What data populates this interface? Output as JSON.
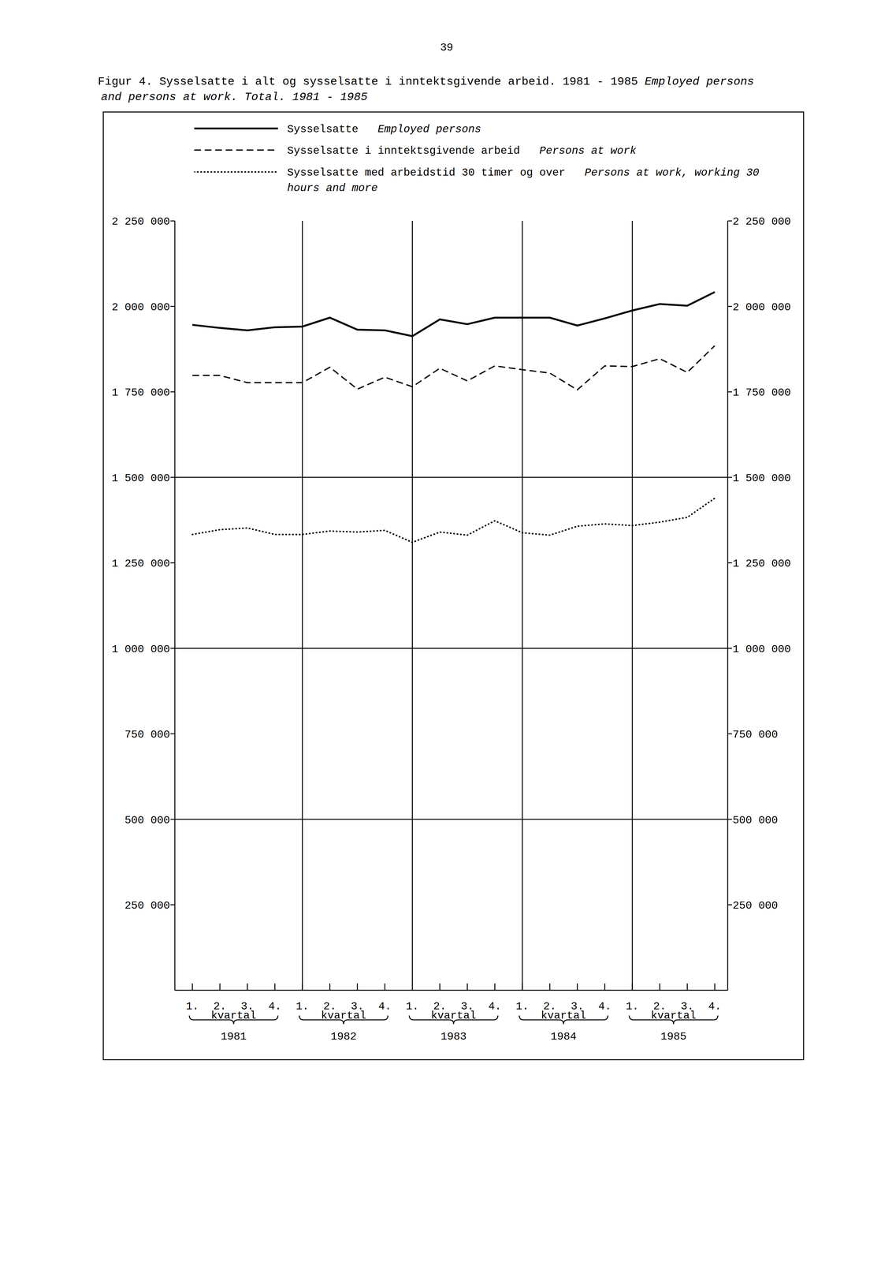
{
  "chart_data": {
    "type": "line",
    "page_number": "39",
    "title": "Figur 4. Sysselsatte i alt og sysselsatte i inntektsgivende arbeid. 1981 - 1985",
    "subtitle": "Employed persons and persons at work. Total. 1981 - 1985",
    "categories": [
      "1.",
      "2.",
      "3.",
      "4.",
      "1.",
      "2.",
      "3.",
      "4.",
      "1.",
      "2.",
      "3.",
      "4.",
      "1.",
      "2.",
      "3.",
      "4.",
      "1.",
      "2.",
      "3.",
      "4."
    ],
    "groups": [
      "1981",
      "1982",
      "1983",
      "1984",
      "1985"
    ],
    "group_label": "kvartal",
    "series": [
      {
        "name": "Sysselsatte",
        "name_en": "Employed persons",
        "color": "#000000",
        "line_style": "solid",
        "values": [
          1946000,
          1937000,
          1930000,
          1939000,
          1941000,
          1967000,
          1932000,
          1930000,
          1913000,
          1962000,
          1948000,
          1967000,
          1967000,
          1967000,
          1944000,
          1965000,
          1988000,
          2007000,
          2002000,
          2042000
        ]
      },
      {
        "name": "Sysselsatte i inntektsgivende arbeid",
        "name_en": "Persons at work",
        "color": "#000000",
        "line_style": "dashed",
        "values": [
          1798000,
          1798000,
          1777000,
          1777000,
          1777000,
          1822000,
          1758000,
          1793000,
          1765000,
          1819000,
          1782000,
          1826000,
          1815000,
          1805000,
          1756000,
          1826000,
          1824000,
          1847000,
          1807000,
          1885000
        ]
      },
      {
        "name": "Sysselsatte med arbeidstid 30 timer og over",
        "name_en": "Persons at work, working 30 hours and more",
        "color": "#000000",
        "line_style": "dotted",
        "values": [
          1333000,
          1347000,
          1352000,
          1333000,
          1333000,
          1343000,
          1340000,
          1345000,
          1310000,
          1340000,
          1331000,
          1373000,
          1338000,
          1331000,
          1357000,
          1364000,
          1359000,
          1369000,
          1383000,
          1439000
        ]
      }
    ],
    "ylim": [
      0,
      2250000
    ],
    "yticks": [
      {
        "value": 250000,
        "label": "250 000"
      },
      {
        "value": 500000,
        "label": "500 000"
      },
      {
        "value": 750000,
        "label": "750 000"
      },
      {
        "value": 1000000,
        "label": "1 000 000"
      },
      {
        "value": 1250000,
        "label": "1 250 000"
      },
      {
        "value": 1500000,
        "label": "1 500 000"
      },
      {
        "value": 1750000,
        "label": "1 750 000"
      },
      {
        "value": 2000000,
        "label": "2 000 000"
      },
      {
        "value": 2250000,
        "label": "2 250 000"
      }
    ],
    "reference_lines": [
      500000,
      1000000,
      1500000
    ],
    "grid": false
  }
}
